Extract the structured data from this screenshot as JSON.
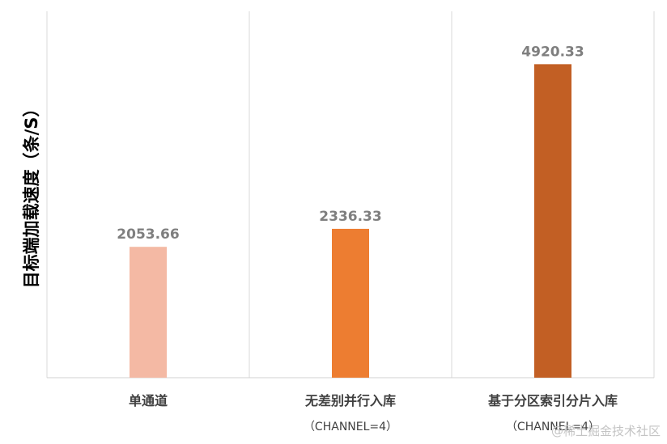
{
  "chart_data": {
    "type": "bar",
    "title": "",
    "xlabel": "",
    "ylabel": "目标端加载速度（条/S）",
    "categories": [
      {
        "line1": "单通道",
        "line2": ""
      },
      {
        "line1": "无差别并行入库",
        "line2": "（CHANNEL=4）"
      },
      {
        "line1": "基于分区索引分片入库",
        "line2": "（CHANNEL=4）"
      }
    ],
    "values": [
      2053.66,
      2336.33,
      4920.33
    ],
    "value_labels": [
      "2053.66",
      "2336.33",
      "4920.33"
    ],
    "colors": [
      "#f4b9a4",
      "#ed7d31",
      "#c25f24"
    ],
    "ylim": [
      0,
      5750
    ],
    "grid": false,
    "legend": "none"
  },
  "watermark": "@稀土掘金技术社区"
}
